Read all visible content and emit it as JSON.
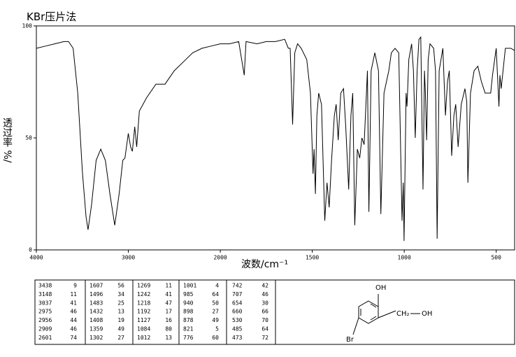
{
  "chart_data": {
    "type": "line",
    "annotation": "KBr压片法",
    "x_label": "波数/cm⁻¹",
    "y_label": "透过率 %/",
    "x": [
      4000,
      3900,
      3800,
      3700,
      3650,
      3600,
      3550,
      3500,
      3460,
      3438,
      3400,
      3350,
      3300,
      3250,
      3200,
      3148,
      3100,
      3060,
      3037,
      3000,
      2975,
      2956,
      2930,
      2909,
      2880,
      2800,
      2700,
      2601,
      2500,
      2400,
      2300,
      2200,
      2100,
      2000,
      1950,
      1900,
      1870,
      1860,
      1800,
      1750,
      1700,
      1650,
      1630,
      1620,
      1607,
      1595,
      1580,
      1560,
      1530,
      1510,
      1496,
      1490,
      1483,
      1475,
      1465,
      1450,
      1432,
      1420,
      1408,
      1395,
      1380,
      1370,
      1359,
      1345,
      1330,
      1318,
      1302,
      1290,
      1280,
      1269,
      1255,
      1242,
      1230,
      1218,
      1200,
      1192,
      1180,
      1160,
      1140,
      1127,
      1110,
      1084,
      1070,
      1050,
      1030,
      1012,
      1005,
      1001,
      990,
      985,
      975,
      960,
      950,
      940,
      930,
      920,
      910,
      898,
      890,
      885,
      878,
      870,
      860,
      840,
      830,
      821,
      810,
      790,
      776,
      765,
      755,
      742,
      730,
      720,
      707,
      690,
      670,
      660,
      654,
      640,
      620,
      600,
      580,
      560,
      530,
      520,
      500,
      485,
      480,
      473,
      450,
      420,
      400
    ],
    "series": [
      {
        "color": "#000000",
        "values": [
          90,
          91,
          92,
          93,
          93,
          90,
          70,
          35,
          15,
          9,
          20,
          40,
          45,
          40,
          25,
          11,
          25,
          40,
          41,
          52,
          46,
          44,
          55,
          46,
          62,
          68,
          74,
          74,
          80,
          84,
          88,
          90,
          91,
          92,
          92,
          93,
          78,
          93,
          92,
          93,
          93,
          94,
          90,
          90,
          56,
          88,
          92,
          90,
          85,
          70,
          34,
          45,
          25,
          60,
          70,
          65,
          13,
          30,
          19,
          40,
          60,
          65,
          49,
          70,
          72,
          55,
          27,
          60,
          70,
          11,
          45,
          41,
          50,
          47,
          80,
          17,
          80,
          88,
          80,
          16,
          70,
          80,
          88,
          90,
          88,
          13,
          30,
          4,
          70,
          64,
          85,
          92,
          80,
          50,
          80,
          94,
          95,
          27,
          80,
          70,
          49,
          85,
          92,
          90,
          80,
          5,
          80,
          90,
          60,
          75,
          80,
          42,
          60,
          65,
          46,
          65,
          72,
          66,
          30,
          70,
          80,
          82,
          75,
          70,
          70,
          78,
          90,
          64,
          78,
          72,
          90,
          90,
          89
        ]
      }
    ],
    "xlim": [
      4000,
      400
    ],
    "x_scale_break": 2000,
    "xticks": [
      4000,
      3000,
      2000,
      1500,
      1000,
      500
    ],
    "ylim": [
      0,
      100
    ],
    "yticks": [
      0,
      50,
      100
    ]
  },
  "peak_table": [
    [
      [
        3438,
        9
      ],
      [
        3148,
        11
      ],
      [
        3037,
        41
      ],
      [
        2975,
        46
      ],
      [
        2956,
        44
      ],
      [
        2909,
        46
      ],
      [
        2601,
        74
      ]
    ],
    [
      [
        1607,
        56
      ],
      [
        1496,
        34
      ],
      [
        1483,
        25
      ],
      [
        1432,
        13
      ],
      [
        1408,
        19
      ],
      [
        1359,
        49
      ],
      [
        1302,
        27
      ]
    ],
    [
      [
        1269,
        11
      ],
      [
        1242,
        41
      ],
      [
        1218,
        47
      ],
      [
        1192,
        17
      ],
      [
        1127,
        16
      ],
      [
        1084,
        80
      ],
      [
        1012,
        13
      ]
    ],
    [
      [
        1001,
        4
      ],
      [
        985,
        64
      ],
      [
        940,
        50
      ],
      [
        898,
        27
      ],
      [
        878,
        49
      ],
      [
        821,
        5
      ],
      [
        776,
        60
      ]
    ],
    [
      [
        742,
        42
      ],
      [
        707,
        46
      ],
      [
        654,
        30
      ],
      [
        660,
        66
      ],
      [
        530,
        70
      ],
      [
        485,
        64
      ],
      [
        473,
        72
      ]
    ]
  ],
  "structure": {
    "labels": [
      "OH",
      "CH₂",
      "OH",
      "Br"
    ]
  }
}
